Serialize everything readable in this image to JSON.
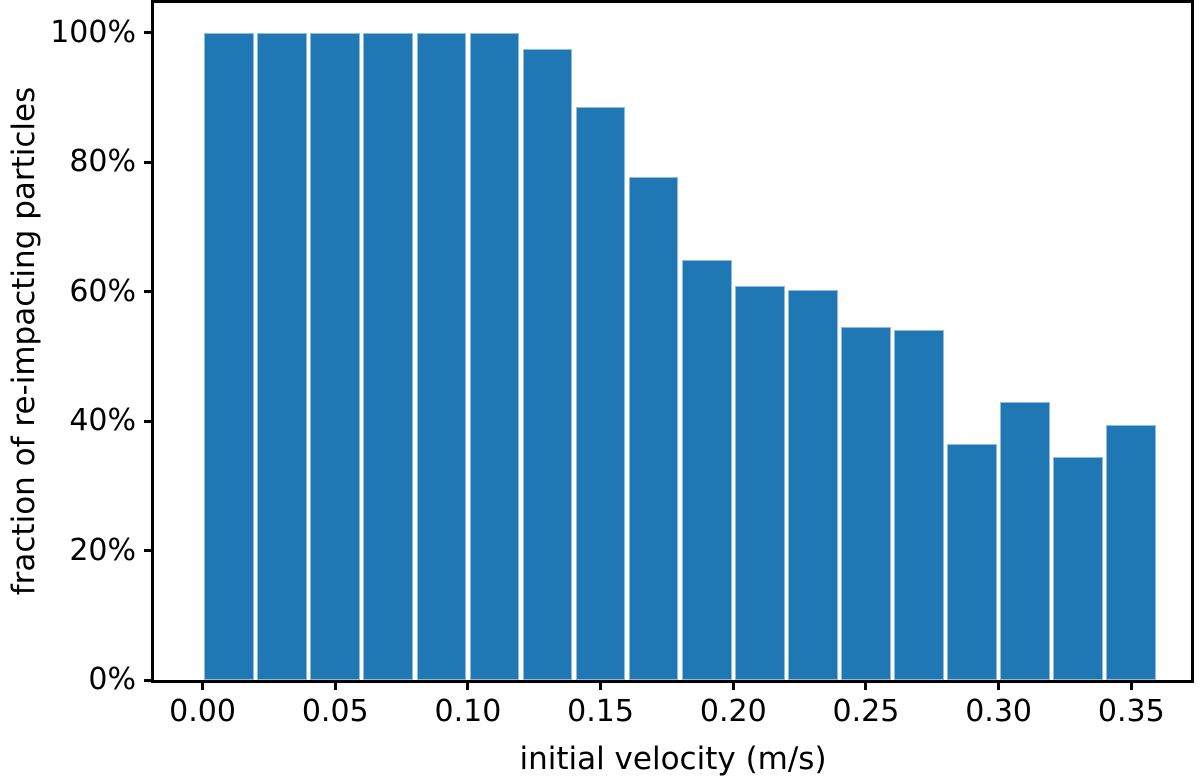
{
  "figure": {
    "background": "#ffffff"
  },
  "chart_data": {
    "type": "bar",
    "title": "",
    "xlabel": "initial velocity (m/s)",
    "ylabel": "fraction of re-impacting particles",
    "grid": false,
    "legend": null,
    "bar_color": "#1f77b4",
    "bar_edge_color": "#8fbcdd",
    "axis_color": "#000000",
    "text_color": "#000000",
    "bin_width": 0.02,
    "x_bin_centers": [
      0.01,
      0.03,
      0.05,
      0.07,
      0.09,
      0.11,
      0.13,
      0.15,
      0.17,
      0.19,
      0.21,
      0.23,
      0.25,
      0.27,
      0.29,
      0.31,
      0.33,
      0.35
    ],
    "values_pct": [
      100,
      100,
      100,
      100,
      100,
      100,
      97.5,
      88.6,
      77.7,
      64.9,
      60.8,
      60.2,
      54.6,
      54.1,
      36.4,
      42.9,
      34.5,
      39.4
    ],
    "x_ticks": [
      {
        "label": "0.00",
        "value": 0.0
      },
      {
        "label": "0.05",
        "value": 0.05
      },
      {
        "label": "0.10",
        "value": 0.1
      },
      {
        "label": "0.15",
        "value": 0.15
      },
      {
        "label": "0.20",
        "value": 0.2
      },
      {
        "label": "0.25",
        "value": 0.25
      },
      {
        "label": "0.30",
        "value": 0.3
      },
      {
        "label": "0.35",
        "value": 0.35
      }
    ],
    "y_ticks": [
      {
        "label": "0%",
        "value": 0
      },
      {
        "label": "20%",
        "value": 20
      },
      {
        "label": "40%",
        "value": 40
      },
      {
        "label": "60%",
        "value": 60
      },
      {
        "label": "80%",
        "value": 80
      },
      {
        "label": "100%",
        "value": 100
      }
    ],
    "xlim": [
      -0.0183,
      0.3725
    ],
    "ylim_pct": [
      0,
      104.6
    ]
  }
}
